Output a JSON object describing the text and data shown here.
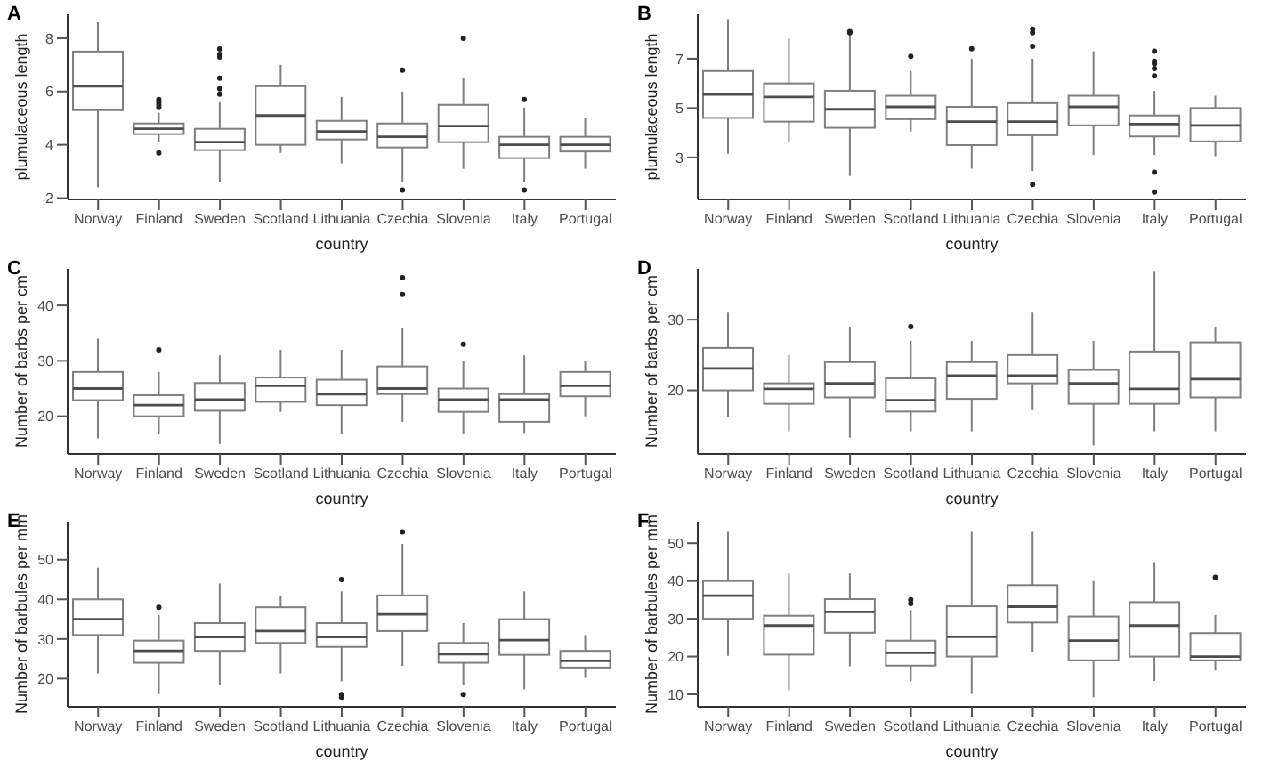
{
  "chart_data": [
    {
      "type": "box",
      "title": "A",
      "xlabel": "country",
      "ylabel": "plumulaceous length",
      "color": "#7f7f7f",
      "categories": [
        "Norway",
        "Finland",
        "Sweden",
        "Scotland",
        "Lithuania",
        "Czechia",
        "Slovenia",
        "Italy",
        "Portugal"
      ],
      "ylim": [
        1.95,
        8.9
      ],
      "yticks": [
        2,
        4,
        6,
        8
      ],
      "grid": false,
      "boxes": [
        {
          "low": 2.4,
          "q1": 5.3,
          "median": 6.2,
          "q3": 7.5,
          "high": 8.6
        },
        {
          "low": 4.1,
          "q1": 4.4,
          "median": 4.6,
          "q3": 4.8,
          "high": 5.2,
          "outliers": [
            5.7,
            5.6,
            5.5,
            5.4,
            3.7
          ]
        },
        {
          "low": 2.6,
          "q1": 3.8,
          "median": 4.1,
          "q3": 4.6,
          "high": 5.6,
          "outliers": [
            7.6,
            7.4,
            7.3,
            6.5,
            6.1,
            5.9
          ]
        },
        {
          "low": 3.7,
          "q1": 4.0,
          "median": 5.1,
          "q3": 6.2,
          "high": 7.0
        },
        {
          "low": 3.3,
          "q1": 4.2,
          "median": 4.5,
          "q3": 4.9,
          "high": 5.8
        },
        {
          "low": 2.6,
          "q1": 3.9,
          "median": 4.3,
          "q3": 4.8,
          "high": 6.0,
          "outliers": [
            6.8,
            2.3
          ]
        },
        {
          "low": 3.1,
          "q1": 4.1,
          "median": 4.7,
          "q3": 5.5,
          "high": 6.5,
          "outliers": [
            8.0
          ]
        },
        {
          "low": 2.6,
          "q1": 3.5,
          "median": 4.0,
          "q3": 4.3,
          "high": 5.4,
          "outliers": [
            5.7,
            2.3
          ]
        },
        {
          "low": 3.1,
          "q1": 3.75,
          "median": 4.0,
          "q3": 4.3,
          "high": 5.0
        }
      ]
    },
    {
      "type": "box",
      "title": "B",
      "xlabel": "country",
      "ylabel": "plumulaceous length",
      "color": "#7f7f7f",
      "categories": [
        "Norway",
        "Finland",
        "Sweden",
        "Scotland",
        "Lithuania",
        "Czechia",
        "Slovenia",
        "Italy",
        "Portugal"
      ],
      "ylim": [
        1.3,
        8.8
      ],
      "yticks": [
        3,
        5,
        7
      ],
      "grid": false,
      "boxes": [
        {
          "low": 3.15,
          "q1": 4.6,
          "median": 5.55,
          "q3": 6.5,
          "high": 8.6
        },
        {
          "low": 3.65,
          "q1": 4.45,
          "median": 5.45,
          "q3": 6.0,
          "high": 7.8
        },
        {
          "low": 2.25,
          "q1": 4.2,
          "median": 4.95,
          "q3": 5.7,
          "high": 8.0,
          "outliers": [
            8.1,
            8.05
          ]
        },
        {
          "low": 4.05,
          "q1": 4.55,
          "median": 5.05,
          "q3": 5.5,
          "high": 6.5,
          "outliers": [
            7.1
          ]
        },
        {
          "low": 2.55,
          "q1": 3.5,
          "median": 4.45,
          "q3": 5.05,
          "high": 7.0,
          "outliers": [
            7.4
          ]
        },
        {
          "low": 2.45,
          "q1": 3.9,
          "median": 4.45,
          "q3": 5.2,
          "high": 7.0,
          "outliers": [
            8.2,
            8.05,
            7.5,
            1.9
          ]
        },
        {
          "low": 3.1,
          "q1": 4.3,
          "median": 5.05,
          "q3": 5.5,
          "high": 7.3
        },
        {
          "low": 3.1,
          "q1": 3.85,
          "median": 4.35,
          "q3": 4.7,
          "high": 5.7,
          "outliers": [
            7.3,
            6.9,
            6.8,
            6.6,
            6.3,
            2.4,
            1.6
          ]
        },
        {
          "low": 3.05,
          "q1": 3.65,
          "median": 4.3,
          "q3": 5.0,
          "high": 5.5
        }
      ]
    },
    {
      "type": "box",
      "title": "C",
      "xlabel": "country",
      "ylabel": "Number of barbs per cm",
      "color": "#7f7f7f",
      "categories": [
        "Norway",
        "Finland",
        "Sweden",
        "Scotland",
        "Lithuania",
        "Czechia",
        "Slovenia",
        "Italy",
        "Portugal"
      ],
      "ylim": [
        13.2,
        46.6
      ],
      "yticks": [
        20,
        30,
        40
      ],
      "grid": false,
      "boxes": [
        {
          "low": 16,
          "q1": 22.9,
          "median": 25,
          "q3": 28,
          "high": 34
        },
        {
          "low": 16.9,
          "q1": 20,
          "median": 22,
          "q3": 23.8,
          "high": 28,
          "outliers": [
            32
          ]
        },
        {
          "low": 15,
          "q1": 21,
          "median": 23,
          "q3": 26,
          "high": 31
        },
        {
          "low": 20.8,
          "q1": 22.6,
          "median": 25.5,
          "q3": 27,
          "high": 32
        },
        {
          "low": 16.9,
          "q1": 22,
          "median": 24,
          "q3": 26.6,
          "high": 32
        },
        {
          "low": 19,
          "q1": 24,
          "median": 25,
          "q3": 29,
          "high": 36,
          "outliers": [
            45,
            42
          ]
        },
        {
          "low": 16.9,
          "q1": 20.8,
          "median": 23,
          "q3": 25,
          "high": 30,
          "outliers": [
            33
          ]
        },
        {
          "low": 17,
          "q1": 19,
          "median": 23,
          "q3": 24,
          "high": 31
        },
        {
          "low": 20,
          "q1": 23.6,
          "median": 25.5,
          "q3": 28,
          "high": 30
        }
      ]
    },
    {
      "type": "box",
      "title": "D",
      "xlabel": "country",
      "ylabel": "Number of barbs per cm",
      "color": "#7f7f7f",
      "categories": [
        "Norway",
        "Finland",
        "Sweden",
        "Scotland",
        "Lithuania",
        "Czechia",
        "Slovenia",
        "Italy",
        "Portugal"
      ],
      "ylim": [
        11,
        37.2
      ],
      "yticks": [
        20,
        30
      ],
      "grid": false,
      "boxes": [
        {
          "low": 16.2,
          "q1": 20,
          "median": 23.1,
          "q3": 26,
          "high": 31
        },
        {
          "low": 14.2,
          "q1": 18.1,
          "median": 20.2,
          "q3": 21,
          "high": 25
        },
        {
          "low": 13.3,
          "q1": 19,
          "median": 21,
          "q3": 24,
          "high": 29
        },
        {
          "low": 14.2,
          "q1": 17,
          "median": 18.6,
          "q3": 21.7,
          "high": 27,
          "outliers": [
            29
          ]
        },
        {
          "low": 14.2,
          "q1": 18.8,
          "median": 22.1,
          "q3": 24,
          "high": 27
        },
        {
          "low": 17.2,
          "q1": 21,
          "median": 22.1,
          "q3": 25,
          "high": 31
        },
        {
          "low": 12.2,
          "q1": 18.1,
          "median": 21,
          "q3": 22.9,
          "high": 27
        },
        {
          "low": 14.2,
          "q1": 18.1,
          "median": 20.2,
          "q3": 25.5,
          "high": 36.9
        },
        {
          "low": 14.2,
          "q1": 19,
          "median": 21.6,
          "q3": 26.8,
          "high": 29
        }
      ]
    },
    {
      "type": "box",
      "title": "E",
      "xlabel": "country",
      "ylabel": "Number of barbules per mm",
      "color": "#7f7f7f",
      "categories": [
        "Norway",
        "Finland",
        "Sweden",
        "Scotland",
        "Lithuania",
        "Czechia",
        "Slovenia",
        "Italy",
        "Portugal"
      ],
      "ylim": [
        12.9,
        59.6
      ],
      "yticks": [
        20,
        30,
        40,
        50
      ],
      "grid": false,
      "boxes": [
        {
          "low": 21.3,
          "q1": 31,
          "median": 35,
          "q3": 40,
          "high": 48
        },
        {
          "low": 16.1,
          "q1": 24,
          "median": 27,
          "q3": 29.6,
          "high": 36,
          "outliers": [
            38
          ]
        },
        {
          "low": 18.3,
          "q1": 27,
          "median": 30.5,
          "q3": 34,
          "high": 44
        },
        {
          "low": 21.3,
          "q1": 29,
          "median": 32,
          "q3": 38,
          "high": 41
        },
        {
          "low": 19.3,
          "q1": 28,
          "median": 30.5,
          "q3": 34,
          "high": 42,
          "outliers": [
            45,
            16,
            15.3
          ]
        },
        {
          "low": 23.2,
          "q1": 32,
          "median": 36.2,
          "q3": 41,
          "high": 54,
          "outliers": [
            57
          ]
        },
        {
          "low": 18.3,
          "q1": 24,
          "median": 26.2,
          "q3": 29,
          "high": 34,
          "outliers": [
            16
          ]
        },
        {
          "low": 17.3,
          "q1": 26,
          "median": 29.7,
          "q3": 35,
          "high": 42
        },
        {
          "low": 20.2,
          "q1": 22.8,
          "median": 24.5,
          "q3": 27,
          "high": 31
        }
      ]
    },
    {
      "type": "box",
      "title": "F",
      "xlabel": "country",
      "ylabel": "Number of barbules per mm",
      "color": "#7f7f7f",
      "categories": [
        "Norway",
        "Finland",
        "Sweden",
        "Scotland",
        "Lithuania",
        "Czechia",
        "Slovenia",
        "Italy",
        "Portugal"
      ],
      "ylim": [
        6.7,
        55.7
      ],
      "yticks": [
        10,
        20,
        30,
        40,
        50
      ],
      "grid": false,
      "boxes": [
        {
          "low": 20.2,
          "q1": 30,
          "median": 36.1,
          "q3": 40,
          "high": 53
        },
        {
          "low": 11,
          "q1": 20.5,
          "median": 28.2,
          "q3": 30.8,
          "high": 42
        },
        {
          "low": 17.4,
          "q1": 26.3,
          "median": 31.8,
          "q3": 35.2,
          "high": 42
        },
        {
          "low": 13.5,
          "q1": 17.6,
          "median": 21,
          "q3": 24.2,
          "high": 32.3,
          "outliers": [
            35,
            34
          ]
        },
        {
          "low": 10.1,
          "q1": 20,
          "median": 25.2,
          "q3": 33.3,
          "high": 53
        },
        {
          "low": 21.3,
          "q1": 29,
          "median": 33.2,
          "q3": 38.9,
          "high": 53
        },
        {
          "low": 9.2,
          "q1": 19,
          "median": 24.2,
          "q3": 30.6,
          "high": 40
        },
        {
          "low": 13.5,
          "q1": 20,
          "median": 28.2,
          "q3": 34.4,
          "high": 45
        },
        {
          "low": 16.3,
          "q1": 19,
          "median": 20,
          "q3": 26.2,
          "high": 31,
          "outliers": [
            41
          ]
        }
      ]
    }
  ]
}
